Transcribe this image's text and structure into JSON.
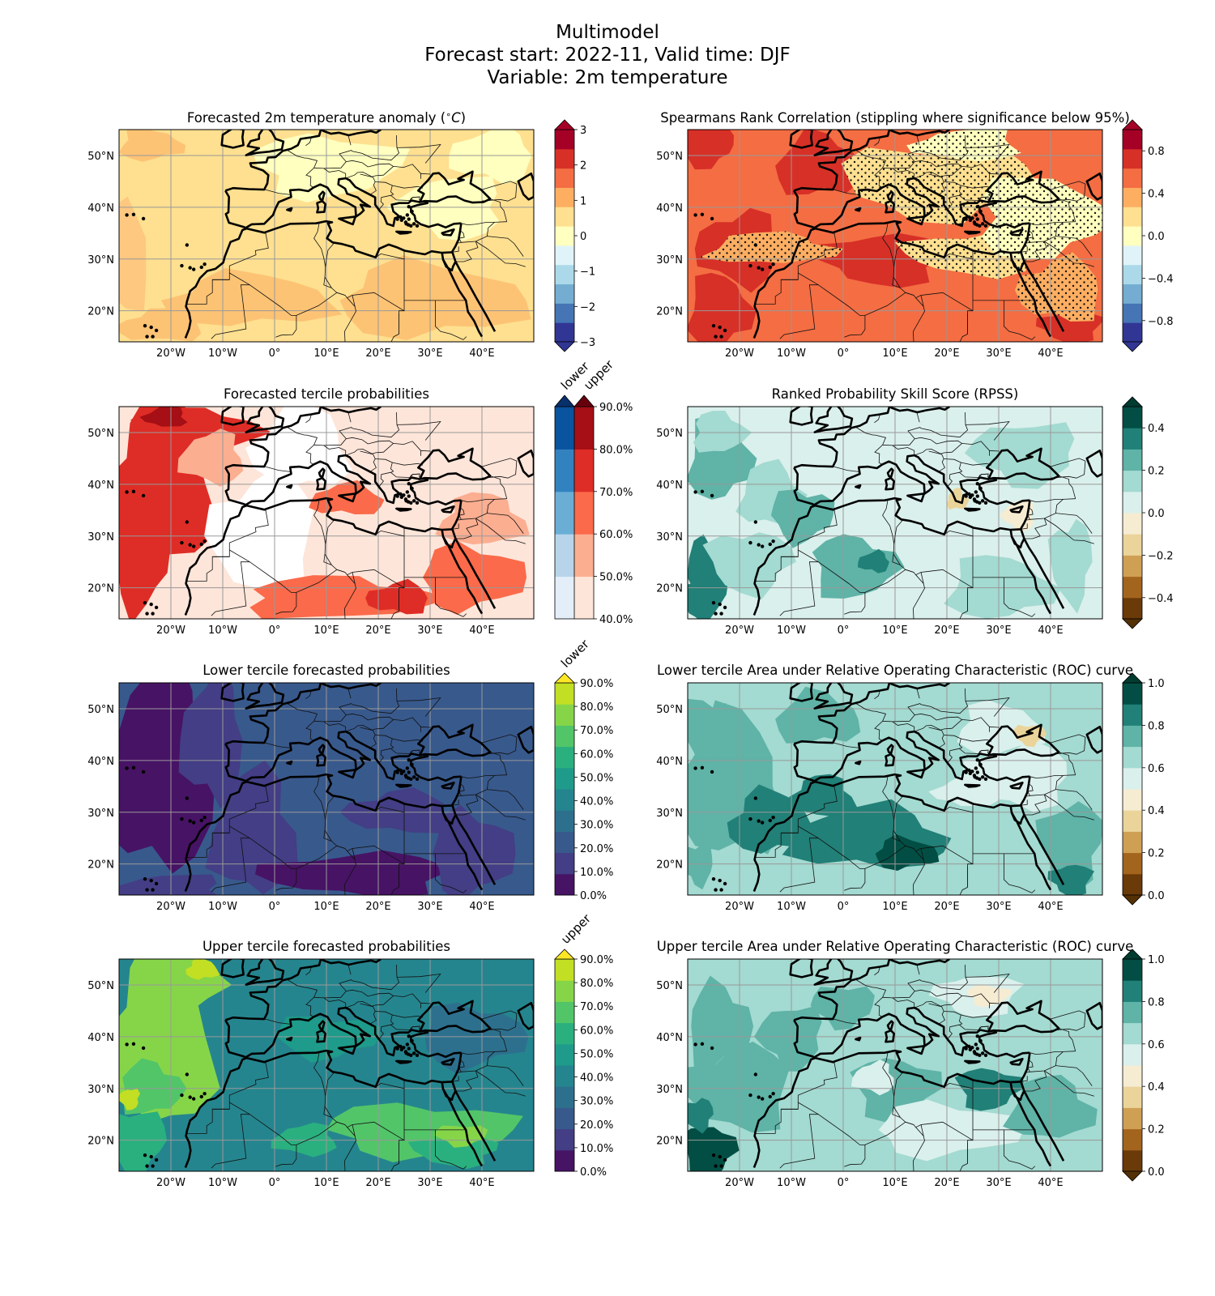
{
  "figure": {
    "title_lines": [
      "Multimodel",
      "Forecast start: 2022-11, Valid time: DJF",
      "Variable: 2m temperature"
    ]
  },
  "map_axes": {
    "lon_ticks": [
      "20°W",
      "10°W",
      "0°",
      "10°E",
      "20°E",
      "30°E",
      "40°E"
    ],
    "lon_values": [
      -20,
      -10,
      0,
      10,
      20,
      30,
      40
    ],
    "lat_ticks": [
      "50°N",
      "40°N",
      "30°N",
      "20°N"
    ],
    "lat_values": [
      50,
      40,
      30,
      20
    ],
    "extent": {
      "lon": [
        -30,
        50
      ],
      "lat": [
        14,
        55
      ]
    }
  },
  "panels": [
    {
      "id": "anomaly",
      "title_pre": "Forecasted 2m temperature anomaly (",
      "title_math": "∘",
      "title_var": "C",
      "title_post": ")",
      "style": "anomaly",
      "colorbar": {
        "type": "single",
        "labels": [
          "3",
          "2",
          "1",
          "0",
          "−1",
          "−2",
          "−3"
        ],
        "label_values": [
          3,
          2,
          1,
          0,
          -1,
          -2,
          -3
        ],
        "range": [
          -3,
          3
        ],
        "colors": [
          "#313695",
          "#4575b4",
          "#74add1",
          "#abd9e9",
          "#e0f3f8",
          "#ffffbf",
          "#fee090",
          "#fdae61",
          "#f46d43",
          "#d73027",
          "#a50026"
        ],
        "ext_low": "#313695",
        "ext_high": "#a50026"
      }
    },
    {
      "id": "spearman",
      "title": "Spearmans Rank Correlation (stippling where significance below 95%)",
      "style": "spearman",
      "colorbar": {
        "type": "single",
        "labels": [
          "0.8",
          "0.4",
          "0.0",
          "−0.4",
          "−0.8"
        ],
        "label_values": [
          0.8,
          0.4,
          0.0,
          -0.4,
          -0.8
        ],
        "range": [
          -1,
          1
        ],
        "colors": [
          "#313695",
          "#4575b4",
          "#74add1",
          "#abd9e9",
          "#e0f3f8",
          "#ffffbf",
          "#fee090",
          "#fdae61",
          "#f46d43",
          "#d73027",
          "#a50026"
        ],
        "ext_low": "#313695",
        "ext_high": "#a50026"
      }
    },
    {
      "id": "tercile",
      "title": "Forecasted tercile probabilities",
      "style": "tercile",
      "colorbar": {
        "type": "double",
        "labels": [
          "90.0%",
          "80.0%",
          "70.0%",
          "60.0%",
          "50.0%",
          "40.0%"
        ],
        "label_values": [
          90,
          80,
          70,
          60,
          50,
          40
        ],
        "range": [
          40,
          90
        ],
        "header_lower": "lower",
        "header_upper": "upper",
        "colors_lower": [
          "#e3eef9",
          "#b7d4ea",
          "#6aaed6",
          "#3282bf",
          "#0a539e"
        ],
        "colors_upper": [
          "#fee5d9",
          "#fcae91",
          "#fb6a4a",
          "#de2d26",
          "#a50f15"
        ],
        "ext_lower": "#08306b",
        "ext_upper": "#67000d"
      }
    },
    {
      "id": "rpss",
      "title": "Ranked Probability Skill Score (RPSS)",
      "style": "rpss",
      "colorbar": {
        "type": "single",
        "labels": [
          "0.4",
          "0.2",
          "0.0",
          "−0.2",
          "−0.4"
        ],
        "label_values": [
          0.4,
          0.2,
          0.0,
          -0.2,
          -0.4
        ],
        "range": [
          -0.5,
          0.5
        ],
        "colors": [
          "#6b3a09",
          "#a3641d",
          "#cfa054",
          "#ebd49a",
          "#f6ecd2",
          "#daf0ec",
          "#a3dad1",
          "#5fb3a7",
          "#218077",
          "#024e44"
        ],
        "ext_low": "#543005",
        "ext_high": "#003c30"
      }
    },
    {
      "id": "lower",
      "title": "Lower tercile forecasted probabilities",
      "style": "lower",
      "colorbar": {
        "type": "single_pct",
        "header": "lower",
        "labels": [
          "90.0%",
          "80.0%",
          "70.0%",
          "60.0%",
          "50.0%",
          "40.0%",
          "30.0%",
          "20.0%",
          "10.0%",
          "0.0%"
        ],
        "label_values": [
          90,
          80,
          70,
          60,
          50,
          40,
          30,
          20,
          10,
          0
        ],
        "range": [
          0,
          90
        ],
        "colors": [
          "#471365",
          "#433e85",
          "#38598c",
          "#2d708e",
          "#25858e",
          "#1e9b8a",
          "#2ab07f",
          "#52c569",
          "#86d549",
          "#c2df23"
        ],
        "ext_high": "#fde725"
      }
    },
    {
      "id": "roc_lower",
      "title": "Lower tercile Area under Relative Operating Characteristic (ROC) curve",
      "style": "roc_lower",
      "colorbar": {
        "type": "single",
        "labels": [
          "1.0",
          "0.8",
          "0.6",
          "0.4",
          "0.2",
          "0.0"
        ],
        "label_values": [
          1.0,
          0.8,
          0.6,
          0.4,
          0.2,
          0.0
        ],
        "range": [
          0,
          1
        ],
        "colors": [
          "#6b3a09",
          "#a3641d",
          "#cfa054",
          "#ebd49a",
          "#f6ecd2",
          "#daf0ec",
          "#a3dad1",
          "#5fb3a7",
          "#218077",
          "#024e44"
        ],
        "ext_low": "#543005",
        "ext_high": "#003c30"
      }
    },
    {
      "id": "upper",
      "title": "Upper tercile forecasted probabilities",
      "style": "upper",
      "colorbar": {
        "type": "single_pct",
        "header": "upper",
        "labels": [
          "90.0%",
          "80.0%",
          "70.0%",
          "60.0%",
          "50.0%",
          "40.0%",
          "30.0%",
          "20.0%",
          "10.0%",
          "0.0%"
        ],
        "label_values": [
          90,
          80,
          70,
          60,
          50,
          40,
          30,
          20,
          10,
          0
        ],
        "range": [
          0,
          90
        ],
        "colors": [
          "#471365",
          "#433e85",
          "#38598c",
          "#2d708e",
          "#25858e",
          "#1e9b8a",
          "#2ab07f",
          "#52c569",
          "#86d549",
          "#c2df23"
        ],
        "ext_high": "#fde725"
      }
    },
    {
      "id": "roc_upper",
      "title": "Upper tercile Area under Relative Operating Characteristic (ROC) curve",
      "style": "roc_upper",
      "colorbar": {
        "type": "single",
        "labels": [
          "1.0",
          "0.8",
          "0.6",
          "0.4",
          "0.2",
          "0.0"
        ],
        "label_values": [
          1.0,
          0.8,
          0.6,
          0.4,
          0.2,
          0.0
        ],
        "range": [
          0,
          1
        ],
        "colors": [
          "#6b3a09",
          "#a3641d",
          "#cfa054",
          "#ebd49a",
          "#f6ecd2",
          "#daf0ec",
          "#a3dad1",
          "#5fb3a7",
          "#218077",
          "#024e44"
        ],
        "ext_low": "#543005",
        "ext_high": "#003c30"
      }
    }
  ]
}
